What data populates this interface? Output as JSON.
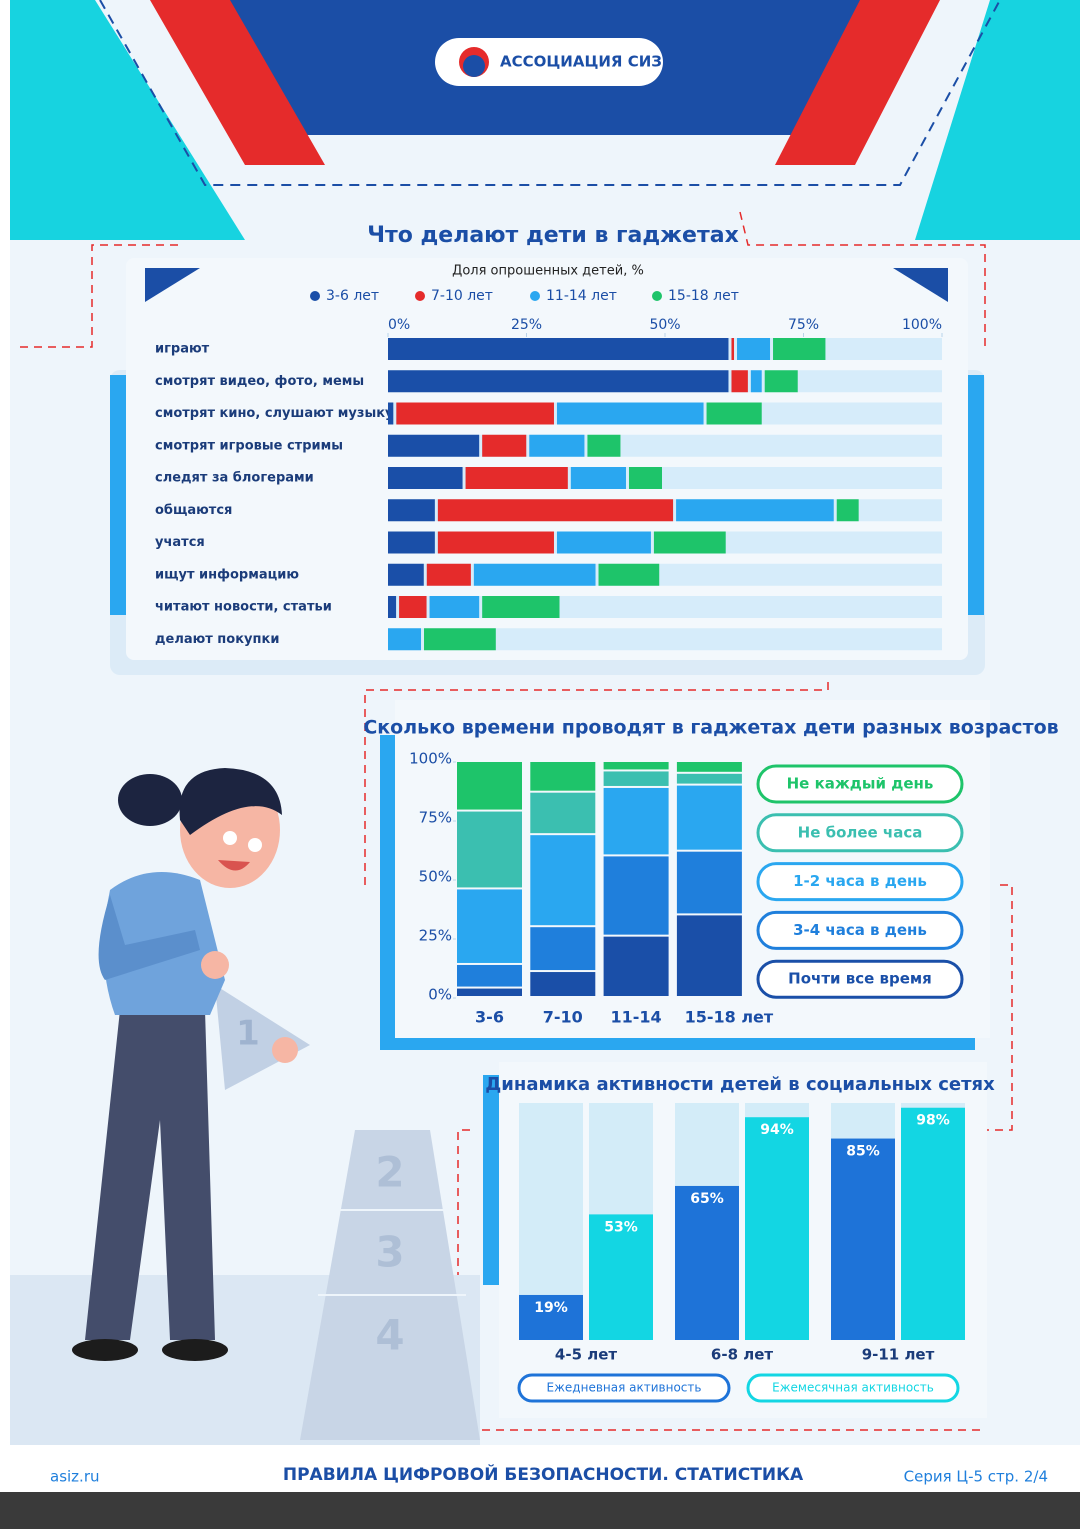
{
  "header": {
    "brand": "АССОЦИАЦИЯ СИЗ"
  },
  "chart_data": [
    {
      "type": "hbar-stacked",
      "title": "Что делают дети в гаджетах",
      "subtitle": "Доля опрошенных детей, %",
      "categories": [
        "играют",
        "смотрят видео, фото, мемы",
        "смотрят кино, слушают музыку",
        "смотрят игровые стримы",
        "следят за блогерами",
        "общаются",
        "учатся",
        "ищут информацию",
        "читают новости, статьи",
        "делают покупки"
      ],
      "series": [
        {
          "name": "3-6 лет",
          "color": "#1a4fa8",
          "values": [
            62,
            62,
            1.5,
            17,
            14,
            9,
            9,
            7,
            2,
            0
          ]
        },
        {
          "name": "7-10 лет",
          "color": "#e52b2b",
          "values": [
            1,
            3.5,
            29,
            8.5,
            19,
            43,
            21.5,
            8.5,
            5.5,
            0
          ]
        },
        {
          "name": "11-14 лет",
          "color": "#2aa7f0",
          "values": [
            6.5,
            2.5,
            27,
            10.5,
            10.5,
            29,
            17.5,
            22.5,
            9.5,
            6.5
          ]
        },
        {
          "name": "15-18 лет",
          "color": "#1ec46a",
          "values": [
            10,
            6.5,
            10.5,
            6.5,
            6.5,
            4.5,
            13.5,
            11.5,
            14.5,
            13.5
          ]
        }
      ],
      "xlim": [
        0,
        100
      ],
      "xticks": [
        {
          "value": 0,
          "label": "0%"
        },
        {
          "value": 25,
          "label": "25%"
        },
        {
          "value": 50,
          "label": "50%"
        },
        {
          "value": 75,
          "label": "75%"
        },
        {
          "value": 100,
          "label": "100%"
        }
      ]
    },
    {
      "type": "bar-stacked",
      "title": "Сколько времени проводят в гаджетах дети разных возрастов",
      "categories": [
        "3-6",
        "7-10",
        "11-14",
        "15-18 лет"
      ],
      "series": [
        {
          "name": "Не каждый день",
          "color": "#1ec46a",
          "values": [
            21,
            13,
            4,
            5
          ]
        },
        {
          "name": "Не более часа",
          "color": "#3bbfb0",
          "values": [
            33,
            18,
            7,
            5
          ]
        },
        {
          "name": "1-2 часа в день",
          "color": "#2aa7f0",
          "values": [
            32,
            39,
            29,
            28
          ]
        },
        {
          "name": "3-4 часа в день",
          "color": "#1f7fdc",
          "values": [
            10,
            19,
            34,
            27
          ]
        },
        {
          "name": "Почти все время",
          "color": "#1a4fa8",
          "values": [
            4,
            11,
            26,
            35
          ]
        }
      ],
      "ylim": [
        0,
        100
      ],
      "yticks": [
        {
          "value": 0,
          "label": "0%"
        },
        {
          "value": 25,
          "label": "25%"
        },
        {
          "value": 50,
          "label": "50%"
        },
        {
          "value": 75,
          "label": "75%"
        },
        {
          "value": 100,
          "label": "100%"
        }
      ]
    },
    {
      "type": "bar-grouped",
      "title": "Динамика активности детей в социальных сетях",
      "categories": [
        "4-5 лет",
        "6-8 лет",
        "9-11 лет"
      ],
      "series": [
        {
          "name": "Ежедневная активность",
          "color": "#1e73d8",
          "values": [
            19,
            65,
            85
          ],
          "value_labels": [
            "19%",
            "65%",
            "85%"
          ]
        },
        {
          "name": "Ежемесячная активность",
          "color": "#13d6e3",
          "values": [
            53,
            94,
            98
          ],
          "value_labels": [
            "53%",
            "94%",
            "98%"
          ]
        }
      ],
      "ylim": [
        0,
        100
      ]
    }
  ],
  "illustration": {
    "steps": [
      "1",
      "2",
      "3",
      "4"
    ]
  },
  "footer": {
    "site": "asiz.ru",
    "title": "ПРАВИЛА ЦИФРОВОЙ БЕЗОПАСНОСТИ. СТАТИСТИКА",
    "series": "Серия Ц-5 стр. 2/4"
  }
}
